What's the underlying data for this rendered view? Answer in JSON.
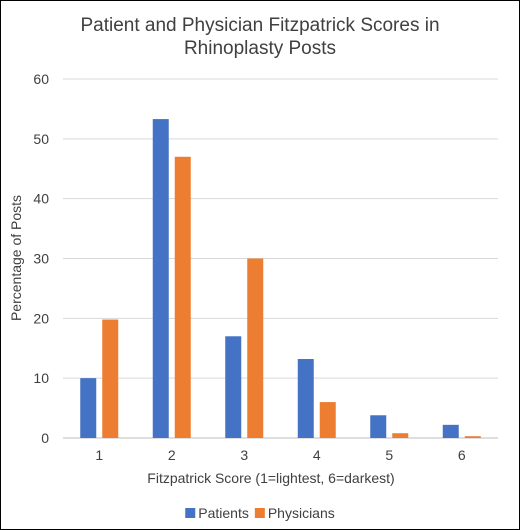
{
  "chart_data": {
    "type": "bar",
    "title_line1": "Patient and Physician Fitzpatrick Scores in",
    "title_line2": "Rhinoplasty Posts",
    "xlabel": "Fitzpatrick Score (1=lightest, 6=darkest)",
    "ylabel": "Percentage of Posts",
    "categories": [
      "1",
      "2",
      "3",
      "4",
      "5",
      "6"
    ],
    "ylim": [
      0,
      60
    ],
    "yticks": [
      "0",
      "10",
      "20",
      "30",
      "40",
      "50",
      "60"
    ],
    "grid": true,
    "legend_position": "bottom",
    "series": [
      {
        "name": "Patients",
        "color": "#4472C4",
        "values": [
          10.0,
          53.3,
          17.0,
          13.2,
          3.8,
          2.2
        ]
      },
      {
        "name": "Physicians",
        "color": "#ED7D31",
        "values": [
          19.8,
          47.0,
          30.0,
          6.0,
          0.8,
          0.3
        ]
      }
    ]
  }
}
